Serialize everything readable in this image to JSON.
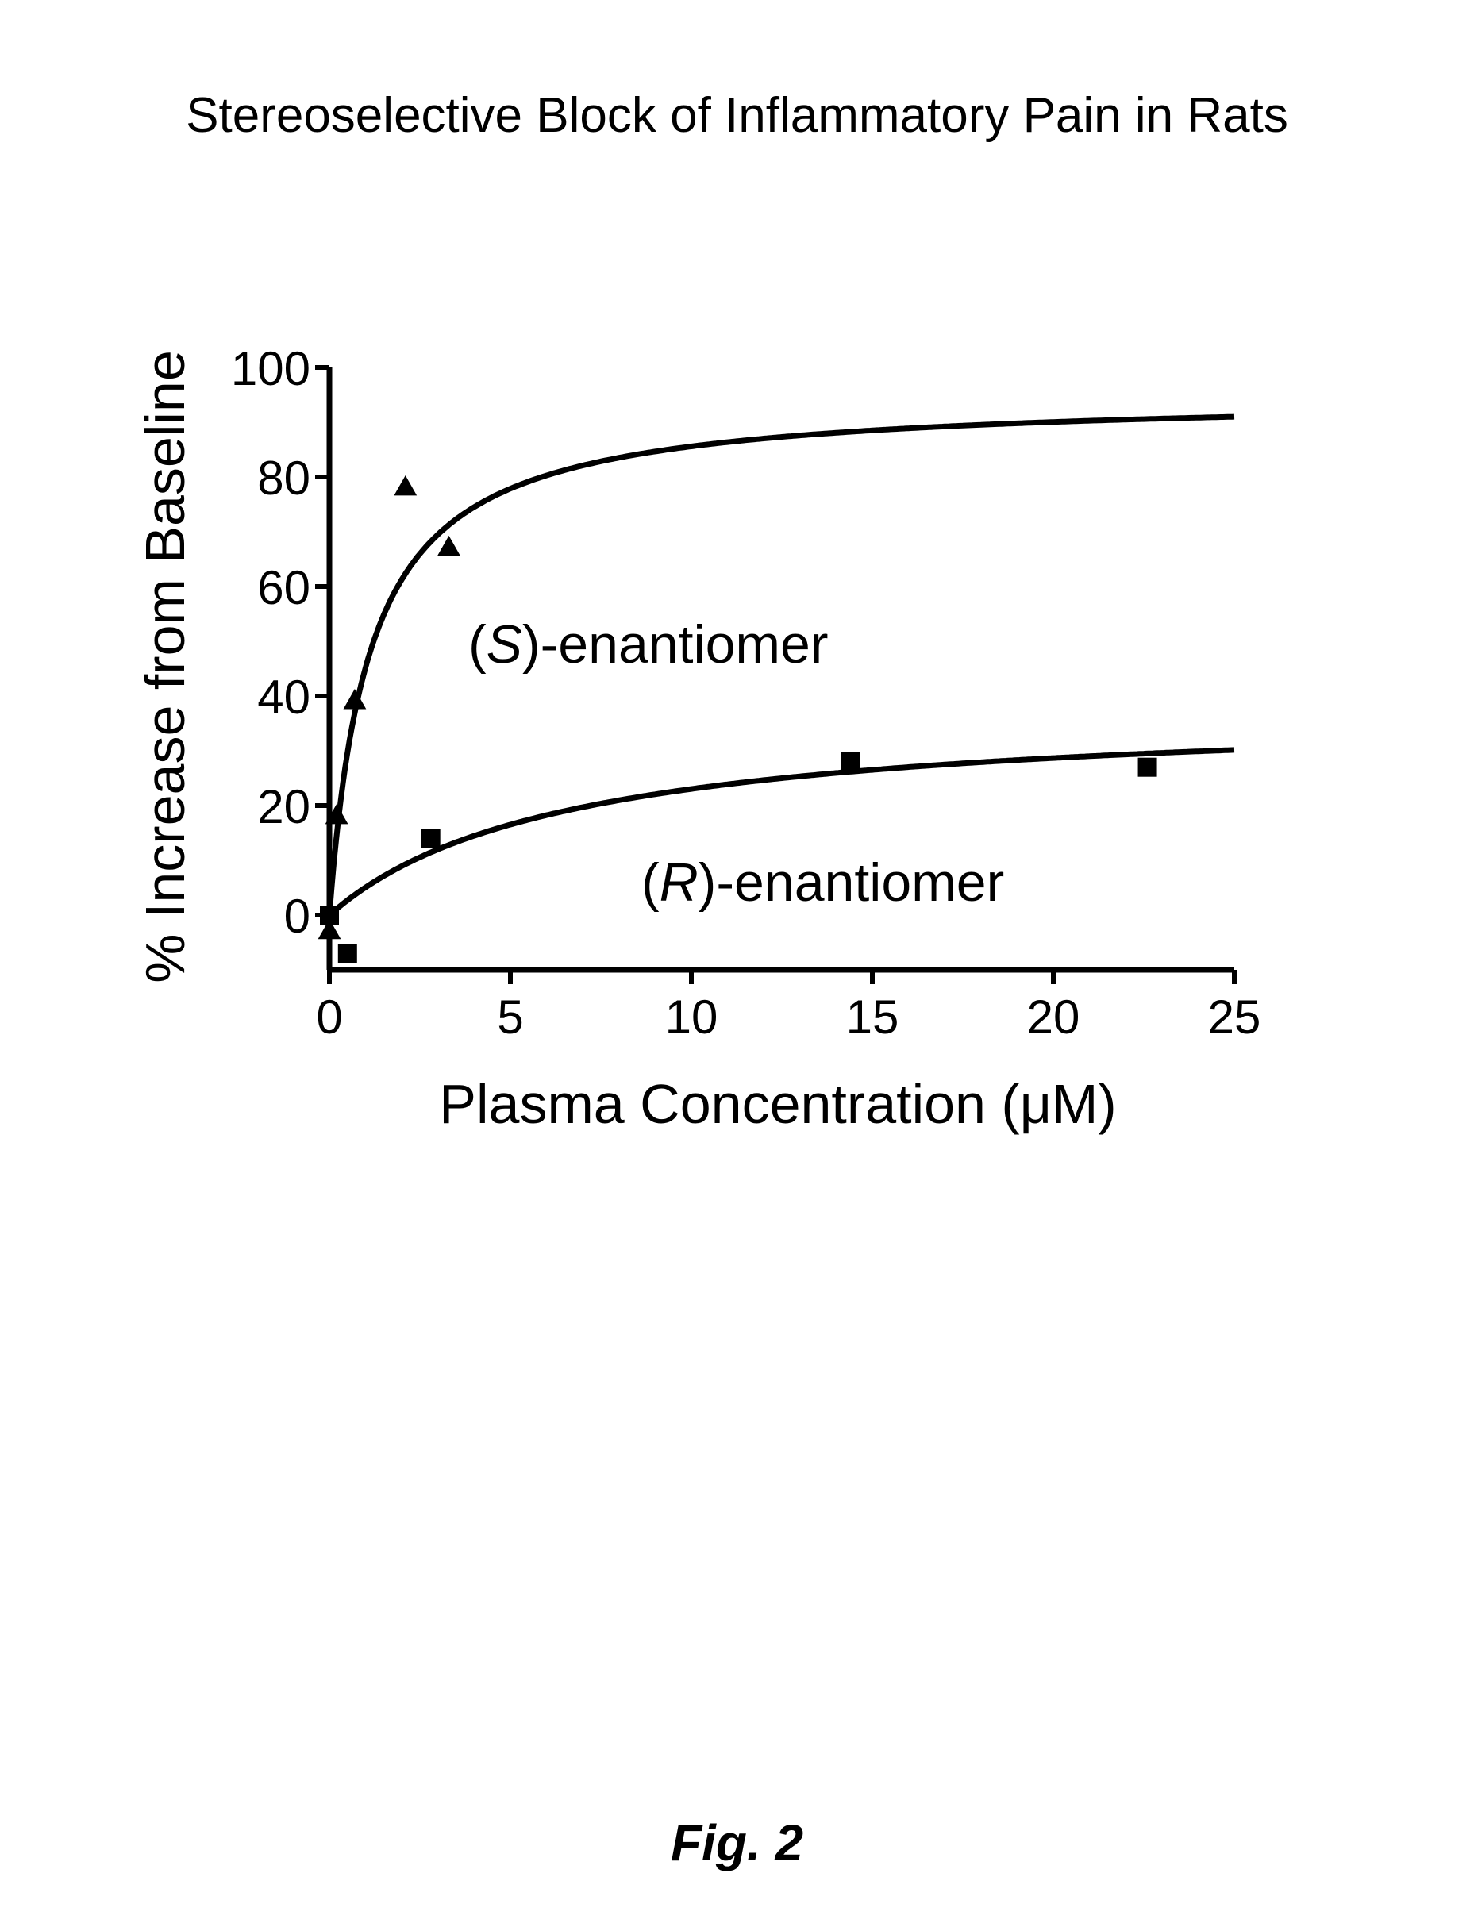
{
  "chart_data": {
    "type": "scatter",
    "title": "Stereoselective Block of Inflammatory Pain in Rats",
    "xlabel": "Plasma Concentration (μM)",
    "ylabel": "% Increase from Baseline",
    "xlim": [
      0,
      25
    ],
    "ylim": [
      -10,
      100
    ],
    "xticks": [
      0,
      5,
      10,
      15,
      20,
      25
    ],
    "yticks": [
      0,
      20,
      40,
      60,
      80,
      100
    ],
    "series": [
      {
        "name": "(S)-enantiomer",
        "label_prefix": "(",
        "label_italic": "S",
        "label_suffix": ")-enantiomer",
        "marker": "triangle",
        "points": [
          [
            0,
            -3
          ],
          [
            0.2,
            18
          ],
          [
            0.7,
            39
          ],
          [
            2.1,
            78
          ],
          [
            3.3,
            67
          ]
        ],
        "fit": {
          "model": "hyperbolic",
          "vmax": 95,
          "k": 1.1
        }
      },
      {
        "name": "(R)-enantiomer",
        "label_prefix": "(",
        "label_italic": "R",
        "label_suffix": ")-enantiomer",
        "marker": "square",
        "points": [
          [
            0,
            0
          ],
          [
            0.5,
            -7
          ],
          [
            2.8,
            14
          ],
          [
            14.4,
            28
          ],
          [
            22.6,
            27
          ]
        ],
        "fit": {
          "model": "hyperbolic",
          "vmax": 38,
          "k": 6.5
        }
      }
    ]
  },
  "figure_label": "Fig. 2"
}
